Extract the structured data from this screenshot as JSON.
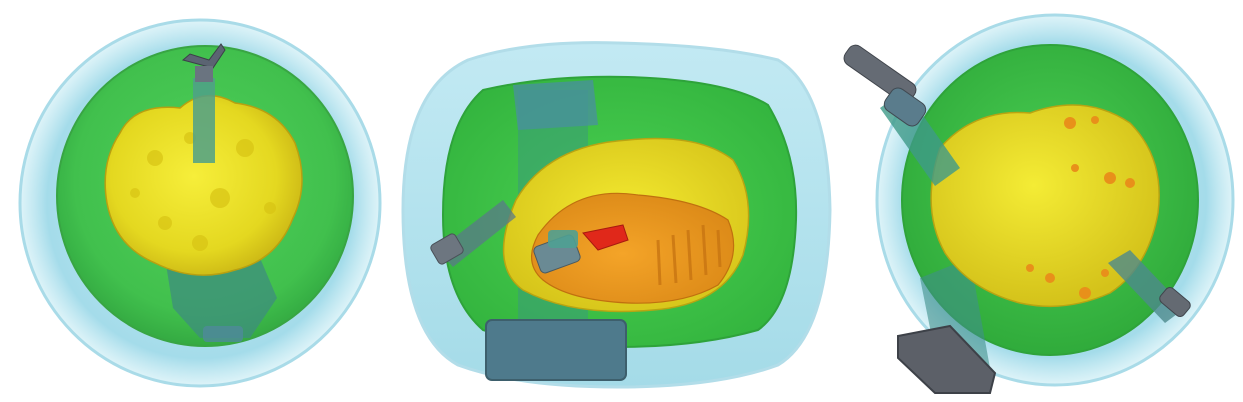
{
  "figure": {
    "panels": [
      {
        "name": "workspace-view-top",
        "layers": [
          "outer-shell",
          "inner-shell",
          "yellow-volume",
          "robot-arm"
        ]
      },
      {
        "name": "workspace-view-side",
        "layers": [
          "outer-shell",
          "inner-shell",
          "yellow-volume",
          "orange-volume",
          "red-core",
          "robot-arm"
        ]
      },
      {
        "name": "workspace-view-oblique",
        "layers": [
          "outer-shell",
          "inner-shell",
          "yellow-volume",
          "orange-spots",
          "robot-arm"
        ]
      }
    ],
    "colors": {
      "outer_shell": "#8fd6e6",
      "inner_shell": "#3fc34a",
      "yellow_volume": "#e8e021",
      "orange_volume": "#f0a020",
      "red_core": "#e0281a",
      "robot_body": "#5f7f8f",
      "robot_dark": "#4a4f57"
    }
  }
}
